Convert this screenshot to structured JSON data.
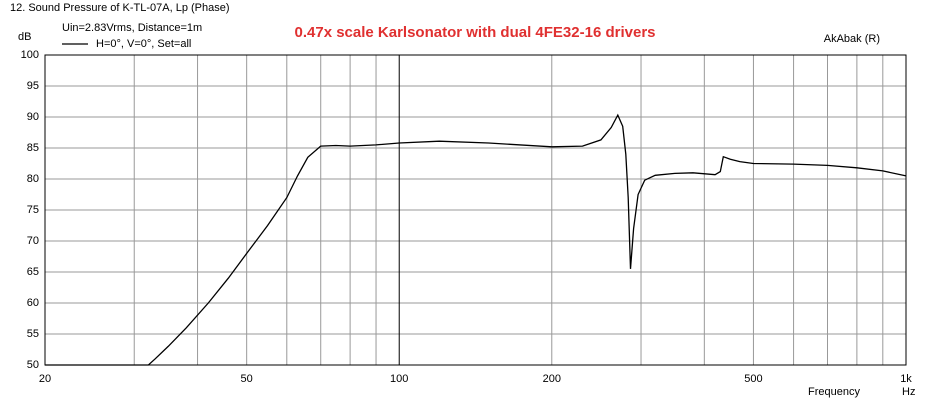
{
  "chart_data": {
    "type": "line",
    "header": "12. Sound Pressure of K-TL-07A, Lp (Phase)",
    "subtitle": "Uin=2.83Vrms, Distance=1m",
    "title": "0.47x scale Karlsonator with dual 4FE32-16 drivers",
    "credit": "AkAbak (R)",
    "y_unit": "dB",
    "x_label": "Frequency",
    "x_unit": "Hz",
    "x_log": true,
    "grid": true,
    "xlim": [
      20,
      1000
    ],
    "ylim": [
      50,
      100
    ],
    "xticks": [
      20,
      50,
      100,
      200,
      500,
      {
        "value": 1000,
        "label": "1k"
      }
    ],
    "xminor": [
      30,
      40,
      60,
      70,
      80,
      90,
      300,
      400,
      600,
      700,
      800,
      900
    ],
    "yticks": [
      100,
      95,
      90,
      85,
      80,
      75,
      70,
      65,
      60,
      55,
      50
    ],
    "x": [
      20,
      32,
      33,
      35,
      38,
      42,
      46,
      50,
      55,
      60,
      63,
      66,
      70,
      75,
      80,
      90,
      100,
      120,
      150,
      200,
      230,
      250,
      262,
      270,
      276,
      280,
      283,
      286,
      290,
      296,
      305,
      320,
      350,
      380,
      420,
      430,
      436,
      450,
      470,
      500,
      600,
      700,
      800,
      900,
      1000
    ],
    "series": [
      {
        "name": "H=0°, V=0°, Set=all",
        "color": "#000000",
        "values": [
          50,
          50,
          51,
          53,
          56,
          60,
          64,
          68,
          72.5,
          77,
          80.5,
          83.5,
          85.3,
          85.4,
          85.3,
          85.5,
          85.8,
          86.1,
          85.8,
          85.2,
          85.3,
          86.3,
          88.3,
          90.3,
          88.5,
          84,
          77,
          65.5,
          72,
          77.5,
          79.8,
          80.6,
          80.9,
          81,
          80.7,
          81.2,
          83.6,
          83.2,
          82.8,
          82.5,
          82.4,
          82.2,
          81.8,
          81.3,
          80.5
        ]
      }
    ]
  }
}
